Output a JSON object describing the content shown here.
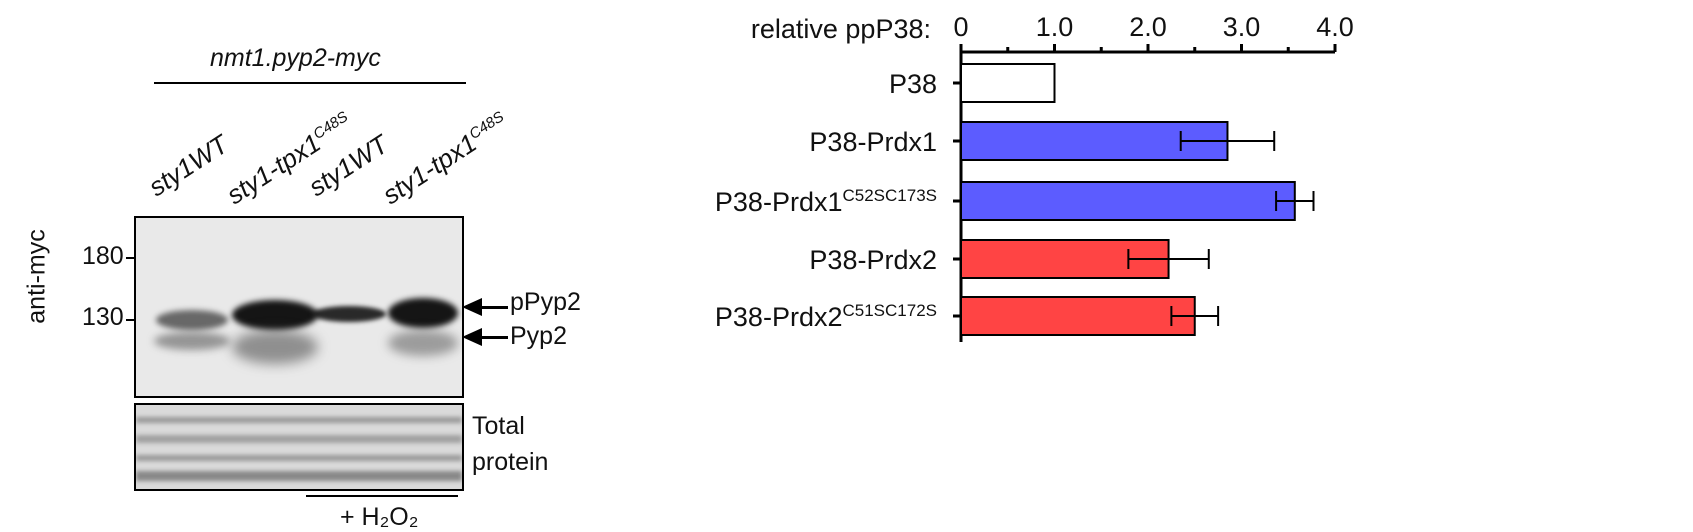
{
  "blot": {
    "strain_title": "nmt1.pyp2-myc",
    "lanes": [
      {
        "main": "sty1WT",
        "sup": ""
      },
      {
        "main": "sty1-tpx1",
        "sup": "C48S"
      },
      {
        "main": "sty1WT",
        "sup": ""
      },
      {
        "main": "sty1-tpx1",
        "sup": "C48S"
      }
    ],
    "antibody_label": "anti-myc",
    "markers": [
      "180",
      "130"
    ],
    "band_labels": [
      "pPyp2",
      "Pyp2"
    ],
    "loading_label_line1": "Total",
    "loading_label_line2": "protein",
    "treatment_label": "+ H₂O₂"
  },
  "chart_data": {
    "type": "bar",
    "orientation": "horizontal",
    "xlabel": "relative ppP38:",
    "xlim": [
      0,
      4.0
    ],
    "xticks": [
      "0",
      "1.0",
      "2.0",
      "3.0",
      "4.0"
    ],
    "categories": [
      {
        "main": "P38",
        "sup": ""
      },
      {
        "main": "P38-Prdx1",
        "sup": ""
      },
      {
        "main": "P38-Prdx1",
        "sup": "C52SC173S"
      },
      {
        "main": "P38-Prdx2",
        "sup": ""
      },
      {
        "main": "P38-Prdx2",
        "sup": "C51SC172S"
      }
    ],
    "values": [
      1.0,
      2.85,
      3.57,
      2.22,
      2.5
    ],
    "errors": [
      0,
      0.5,
      0.2,
      0.43,
      0.25
    ],
    "colors": [
      "#ffffff",
      "#5c5cff",
      "#5c5cff",
      "#ff4444",
      "#ff4444"
    ],
    "grid": false
  }
}
